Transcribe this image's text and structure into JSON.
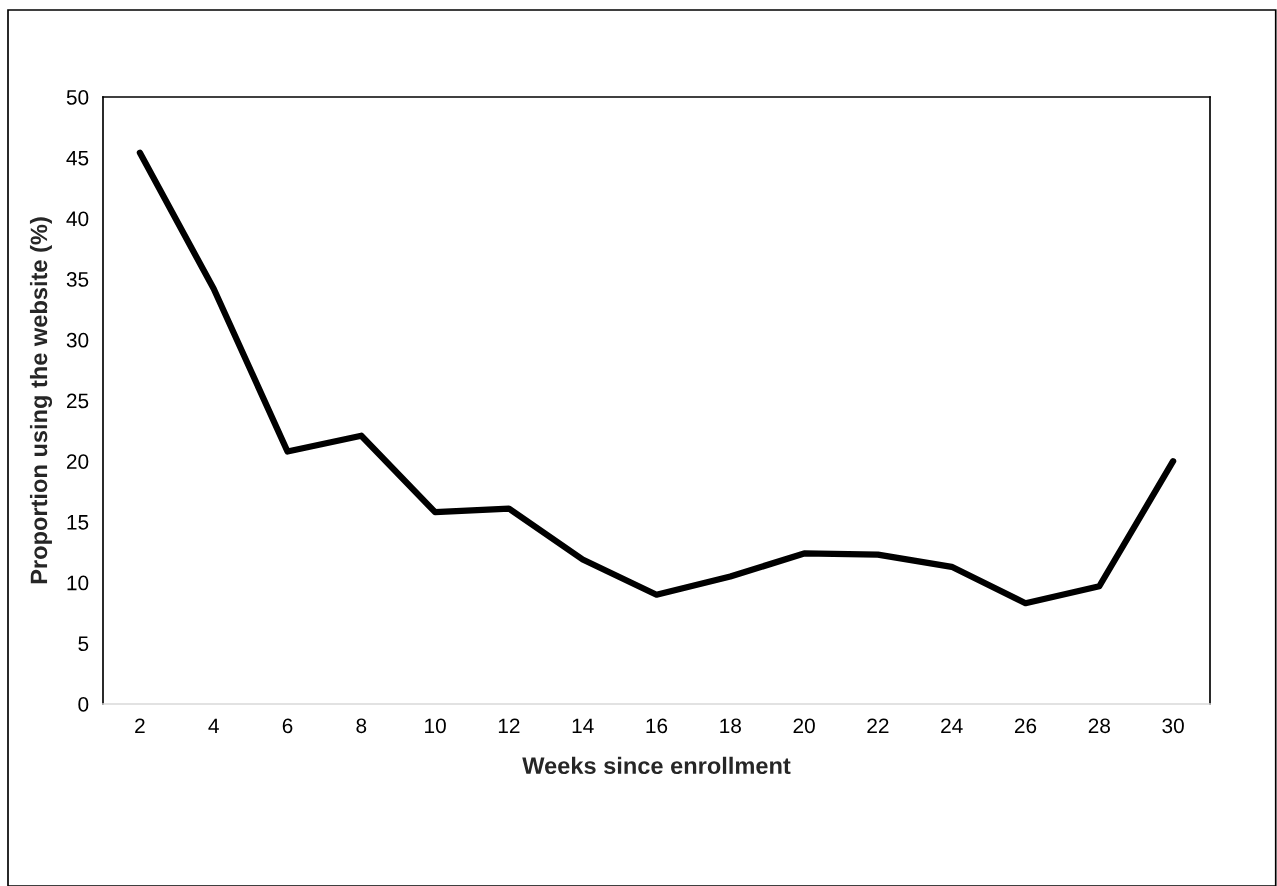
{
  "chart_data": {
    "type": "line",
    "xlabel": "Weeks since enrollment",
    "ylabel": "Proportion using the website (%)",
    "categories": [
      "2",
      "4",
      "6",
      "8",
      "10",
      "12",
      "14",
      "16",
      "18",
      "20",
      "22",
      "24",
      "26",
      "28",
      "30"
    ],
    "series": [
      {
        "color": "#000000",
        "values": [
          45.4,
          34.2,
          20.8,
          22.1,
          15.8,
          16.1,
          11.9,
          9.0,
          10.5,
          12.4,
          12.3,
          11.3,
          8.3,
          9.7,
          20.0
        ]
      }
    ],
    "ylim": [
      0,
      50
    ],
    "yticks": [
      0,
      5,
      10,
      15,
      20,
      25,
      30,
      35,
      40,
      45,
      50
    ],
    "grid": false,
    "marker": "none",
    "line_style": "solid"
  }
}
